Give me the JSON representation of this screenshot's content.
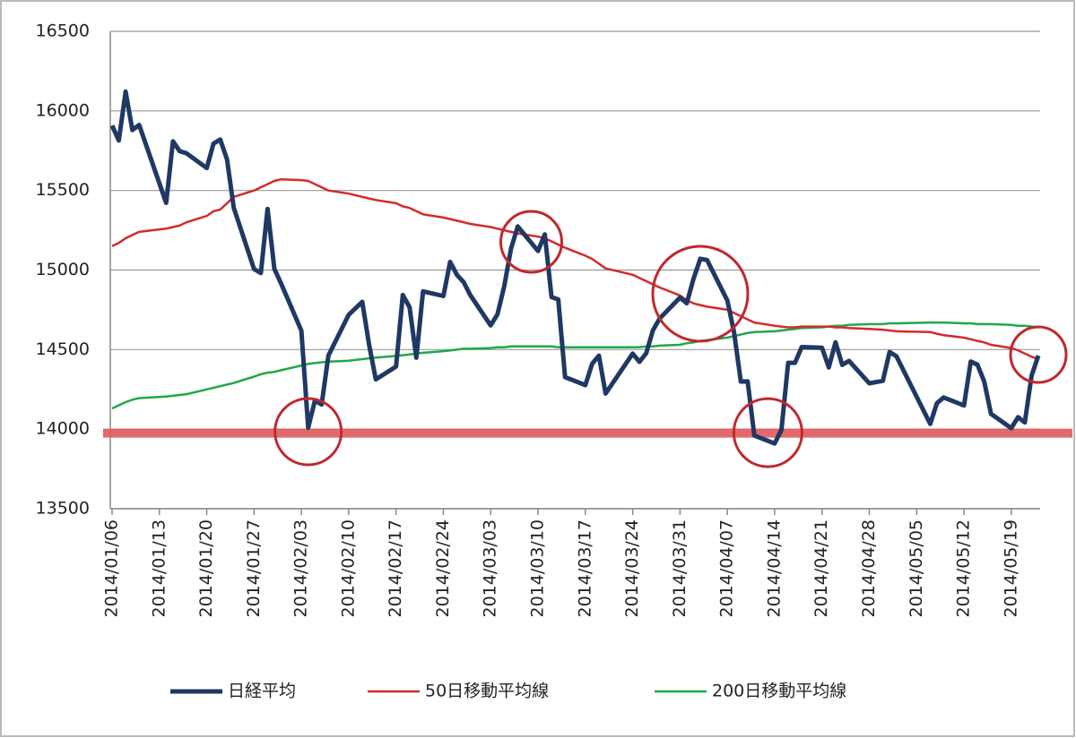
{
  "chart_data": {
    "type": "line",
    "x": [
      "2014/01/06",
      "2014/01/07",
      "2014/01/08",
      "2014/01/09",
      "2014/01/10",
      "2014/01/14",
      "2014/01/15",
      "2014/01/16",
      "2014/01/17",
      "2014/01/20",
      "2014/01/21",
      "2014/01/22",
      "2014/01/23",
      "2014/01/24",
      "2014/01/27",
      "2014/01/28",
      "2014/01/29",
      "2014/01/30",
      "2014/01/31",
      "2014/02/03",
      "2014/02/04",
      "2014/02/05",
      "2014/02/06",
      "2014/02/07",
      "2014/02/10",
      "2014/02/12",
      "2014/02/13",
      "2014/02/14",
      "2014/02/17",
      "2014/02/18",
      "2014/02/19",
      "2014/02/20",
      "2014/02/21",
      "2014/02/24",
      "2014/02/25",
      "2014/02/26",
      "2014/02/27",
      "2014/02/28",
      "2014/03/03",
      "2014/03/04",
      "2014/03/05",
      "2014/03/06",
      "2014/03/07",
      "2014/03/10",
      "2014/03/11",
      "2014/03/12",
      "2014/03/13",
      "2014/03/14",
      "2014/03/17",
      "2014/03/18",
      "2014/03/19",
      "2014/03/20",
      "2014/03/24",
      "2014/03/25",
      "2014/03/26",
      "2014/03/27",
      "2014/03/28",
      "2014/03/31",
      "2014/04/01",
      "2014/04/02",
      "2014/04/03",
      "2014/04/04",
      "2014/04/07",
      "2014/04/08",
      "2014/04/09",
      "2014/04/10",
      "2014/04/11",
      "2014/04/14",
      "2014/04/15",
      "2014/04/16",
      "2014/04/17",
      "2014/04/18",
      "2014/04/21",
      "2014/04/22",
      "2014/04/23",
      "2014/04/24",
      "2014/04/25",
      "2014/04/28",
      "2014/04/30",
      "2014/05/01",
      "2014/05/02",
      "2014/05/07",
      "2014/05/08",
      "2014/05/09",
      "2014/05/12",
      "2014/05/13",
      "2014/05/14",
      "2014/05/15",
      "2014/05/16",
      "2014/05/19",
      "2014/05/20",
      "2014/05/21",
      "2014/05/22",
      "2014/05/23"
    ],
    "series": [
      {
        "name": "日経平均",
        "color": "#1f3864",
        "width": 5,
        "values": [
          15908,
          15814,
          16121,
          15880,
          15912,
          15422,
          15809,
          15747,
          15734,
          15641,
          15795,
          15820,
          15695,
          15391,
          15006,
          14981,
          15384,
          15007,
          14915,
          14619,
          14009,
          14180,
          14155,
          14463,
          14719,
          14800,
          14535,
          14313,
          14393,
          14843,
          14766,
          14449,
          14866,
          14837,
          15051,
          14970,
          14924,
          14841,
          14652,
          14722,
          14897,
          15134,
          15274,
          15120,
          15224,
          14830,
          14815,
          14327,
          14277,
          14411,
          14462,
          14224,
          14475,
          14423,
          14477,
          14622,
          14696,
          14827,
          14791,
          14946,
          15071,
          15063,
          14808,
          14607,
          14299,
          14300,
          13960,
          13910,
          13996,
          14417,
          14417,
          14516,
          14512,
          14388,
          14546,
          14404,
          14429,
          14288,
          14304,
          14485,
          14458,
          14033,
          14163,
          14199,
          14149,
          14425,
          14405,
          14298,
          14096,
          14006,
          14075,
          14042,
          14337,
          14462
        ]
      },
      {
        "name": "50日移動平均線",
        "color": "#d42a2a",
        "width": 2.5,
        "values": [
          15150,
          15170,
          15200,
          15220,
          15240,
          15260,
          15270,
          15280,
          15300,
          15340,
          15370,
          15380,
          15420,
          15460,
          15500,
          15520,
          15540,
          15560,
          15570,
          15565,
          15560,
          15540,
          15520,
          15500,
          15480,
          15460,
          15450,
          15440,
          15420,
          15400,
          15390,
          15370,
          15350,
          15330,
          15320,
          15310,
          15300,
          15290,
          15270,
          15260,
          15250,
          15240,
          15230,
          15210,
          15200,
          15180,
          15160,
          15140,
          15090,
          15070,
          15040,
          15010,
          14970,
          14950,
          14930,
          14910,
          14890,
          14840,
          14810,
          14790,
          14780,
          14770,
          14750,
          14730,
          14710,
          14690,
          14670,
          14650,
          14645,
          14640,
          14640,
          14645,
          14645,
          14645,
          14640,
          14640,
          14635,
          14630,
          14625,
          14620,
          14615,
          14610,
          14600,
          14590,
          14575,
          14565,
          14555,
          14545,
          14530,
          14510,
          14495,
          14475,
          14455,
          14440
        ]
      },
      {
        "name": "200日移動平均線",
        "color": "#21a84a",
        "width": 2.5,
        "values": [
          14130,
          14150,
          14170,
          14185,
          14195,
          14205,
          14210,
          14215,
          14220,
          14250,
          14260,
          14270,
          14280,
          14290,
          14330,
          14345,
          14355,
          14360,
          14370,
          14400,
          14410,
          14415,
          14420,
          14425,
          14430,
          14440,
          14445,
          14450,
          14460,
          14465,
          14470,
          14475,
          14480,
          14490,
          14495,
          14500,
          14505,
          14505,
          14510,
          14515,
          14515,
          14520,
          14520,
          14520,
          14520,
          14520,
          14515,
          14515,
          14515,
          14515,
          14515,
          14515,
          14515,
          14515,
          14520,
          14520,
          14525,
          14530,
          14540,
          14545,
          14555,
          14560,
          14575,
          14585,
          14595,
          14605,
          14610,
          14615,
          14620,
          14625,
          14630,
          14635,
          14640,
          14645,
          14650,
          14650,
          14655,
          14660,
          14660,
          14665,
          14665,
          14670,
          14670,
          14670,
          14665,
          14665,
          14660,
          14660,
          14660,
          14655,
          14650,
          14650,
          14645,
          14640
        ]
      }
    ],
    "xlim": [
      "2014/01/06",
      "2014/05/23"
    ],
    "xticks": [
      "2014/01/06",
      "2014/01/13",
      "2014/01/20",
      "2014/01/27",
      "2014/02/03",
      "2014/02/10",
      "2014/02/17",
      "2014/02/24",
      "2014/03/03",
      "2014/03/10",
      "2014/03/17",
      "2014/03/24",
      "2014/03/31",
      "2014/04/07",
      "2014/04/14",
      "2014/04/21",
      "2014/04/28",
      "2014/05/05",
      "2014/05/12",
      "2014/05/19"
    ],
    "ylim": [
      13500,
      16500
    ],
    "yticks": [
      13500,
      14000,
      14500,
      15000,
      15500,
      16000,
      16500
    ],
    "grid": true,
    "legend": "bottom",
    "hlines": [
      {
        "value": 13975,
        "color": "#e05a5a"
      }
    ],
    "circles": [
      {
        "x": "2014/02/04",
        "y": 13984,
        "color": "#c0282d"
      },
      {
        "x": "2014/03/09",
        "y": 15177,
        "color": "#c0282d"
      },
      {
        "x": "2014/04/03",
        "y": 14851,
        "color": "#c0282d"
      },
      {
        "x": "2014/04/13",
        "y": 13978,
        "color": "#c0282d"
      },
      {
        "x": "2014/05/23",
        "y": 14468,
        "color": "#c0282d"
      }
    ]
  }
}
